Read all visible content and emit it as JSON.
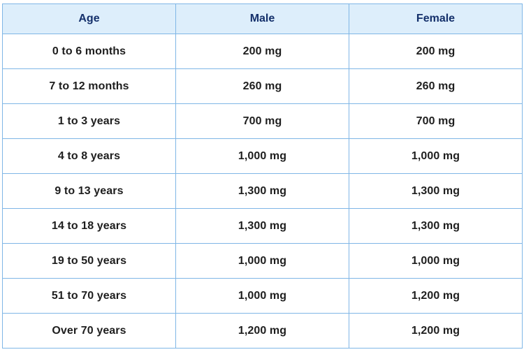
{
  "table": {
    "headers": [
      "Age",
      "Male",
      "Female"
    ],
    "rows": [
      [
        "0 to 6 months",
        "200 mg",
        "200 mg"
      ],
      [
        "7 to 12 months",
        "260 mg",
        "260 mg"
      ],
      [
        "1 to 3 years",
        "700 mg",
        "700 mg"
      ],
      [
        "4 to 8 years",
        "1,000 mg",
        "1,000 mg"
      ],
      [
        "9 to 13 years",
        "1,300 mg",
        "1,300 mg"
      ],
      [
        "14 to 18 years",
        "1,300 mg",
        "1,300 mg"
      ],
      [
        "19 to 50 years",
        "1,000 mg",
        "1,000 mg"
      ],
      [
        "51 to 70 years",
        "1,000 mg",
        "1,200 mg"
      ],
      [
        "Over 70 years",
        "1,200 mg",
        "1,200 mg"
      ]
    ],
    "colors": {
      "header_bg": "#ddeefb",
      "header_text": "#14306b",
      "border": "#7fb6e6",
      "body_text": "#1e1e1e"
    }
  }
}
